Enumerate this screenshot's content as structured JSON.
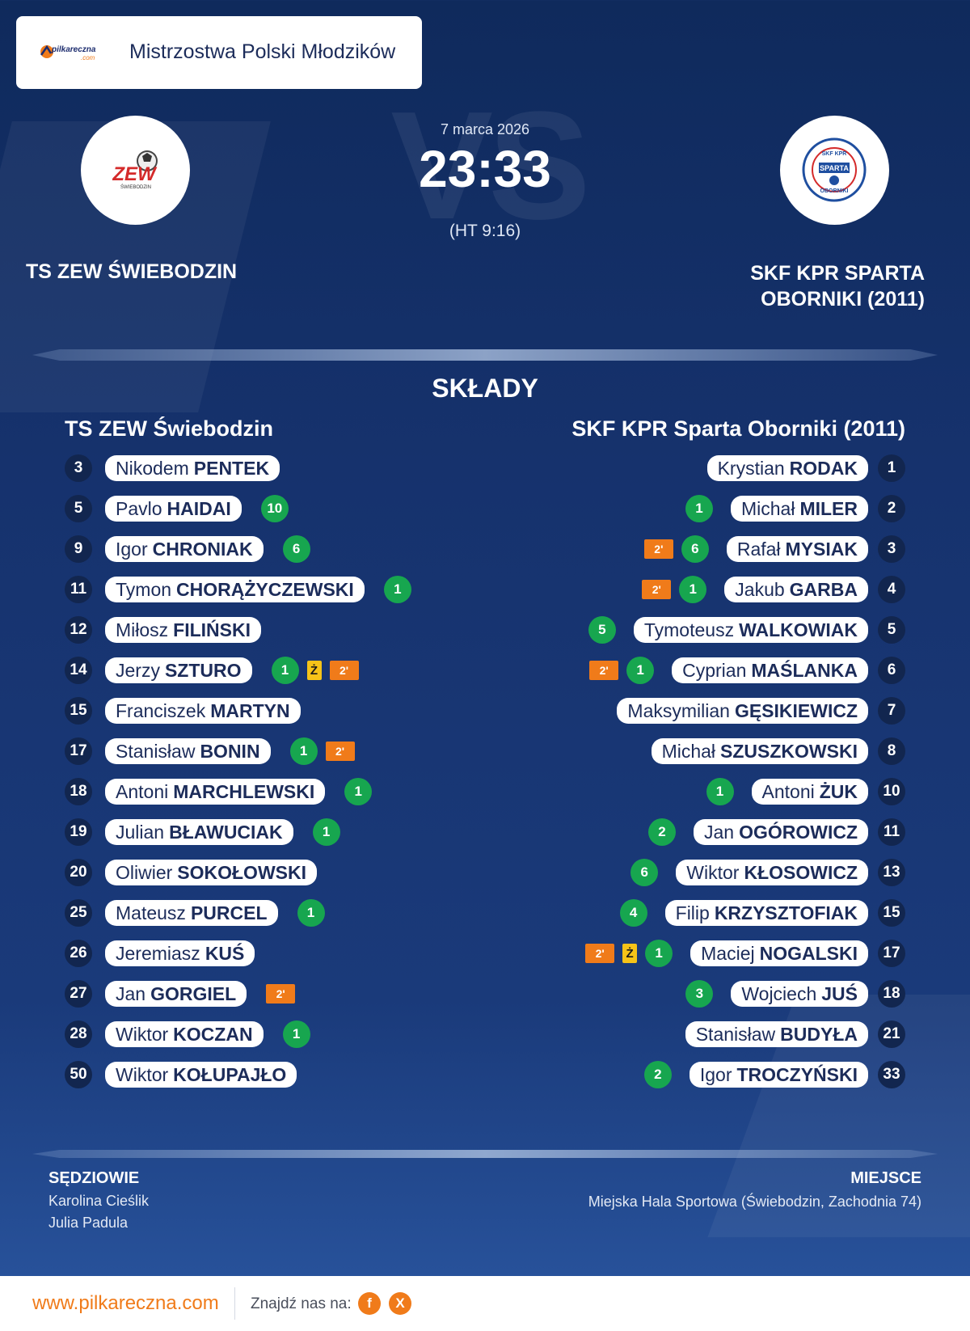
{
  "header": {
    "brand_name": "pilkareczna",
    "brand_tld": ".com",
    "competition": "Mistrzostwa Polski Młodzików"
  },
  "match": {
    "date": "7 marca 2026",
    "score": "23:33",
    "halftime": "(HT 9:16)",
    "vs_text": "VS"
  },
  "home": {
    "name": "TS ZEW ŚWIEBODZIN",
    "lineup_title": "TS ZEW Świebodzin",
    "logo_text": "ZEW",
    "logo_subtext": "ŚWIEBODZIN",
    "players": [
      {
        "number": "3",
        "first": "Nikodem",
        "last": "PENTEK",
        "stats": []
      },
      {
        "number": "5",
        "first": "Pavlo",
        "last": "HAIDAI",
        "stats": [
          {
            "type": "goals",
            "value": "10"
          }
        ]
      },
      {
        "number": "9",
        "first": "Igor",
        "last": "CHRONIAK",
        "stats": [
          {
            "type": "goals",
            "value": "6"
          }
        ]
      },
      {
        "number": "11",
        "first": "Tymon",
        "last": "CHORĄŻYCZEWSKI",
        "stats": [
          {
            "type": "goals",
            "value": "1"
          }
        ]
      },
      {
        "number": "12",
        "first": "Miłosz",
        "last": "FILIŃSKI",
        "stats": []
      },
      {
        "number": "14",
        "first": "Jerzy",
        "last": "SZTURO",
        "stats": [
          {
            "type": "goals",
            "value": "1"
          },
          {
            "type": "yellow",
            "value": "Ż"
          },
          {
            "type": "suspension",
            "value": "2'"
          }
        ]
      },
      {
        "number": "15",
        "first": "Franciszek",
        "last": "MARTYN",
        "stats": []
      },
      {
        "number": "17",
        "first": "Stanisław",
        "last": "BONIN",
        "stats": [
          {
            "type": "goals",
            "value": "1"
          },
          {
            "type": "suspension",
            "value": "2'"
          }
        ]
      },
      {
        "number": "18",
        "first": "Antoni",
        "last": "MARCHLEWSKI",
        "stats": [
          {
            "type": "goals",
            "value": "1"
          }
        ]
      },
      {
        "number": "19",
        "first": "Julian",
        "last": "BŁAWUCIAK",
        "stats": [
          {
            "type": "goals",
            "value": "1"
          }
        ]
      },
      {
        "number": "20",
        "first": "Oliwier",
        "last": "SOKOŁOWSKI",
        "stats": []
      },
      {
        "number": "25",
        "first": "Mateusz",
        "last": "PURCEL",
        "stats": [
          {
            "type": "goals",
            "value": "1"
          }
        ]
      },
      {
        "number": "26",
        "first": "Jeremiasz",
        "last": "KUŚ",
        "stats": []
      },
      {
        "number": "27",
        "first": "Jan",
        "last": "GORGIEL",
        "stats": [
          {
            "type": "suspension",
            "value": "2'"
          }
        ]
      },
      {
        "number": "28",
        "first": "Wiktor",
        "last": "KOCZAN",
        "stats": [
          {
            "type": "goals",
            "value": "1"
          }
        ]
      },
      {
        "number": "50",
        "first": "Wiktor",
        "last": "KOŁUPAJŁO",
        "stats": []
      }
    ]
  },
  "away": {
    "name_line1": "SKF KPR SPARTA",
    "name_line2": "OBORNIKI (2011)",
    "lineup_title": "SKF KPR Sparta Oborniki (2011)",
    "logo_text_top": "SKF KPR",
    "logo_text_mid": "SPARTA",
    "logo_text_bottom": "OBORNIKI",
    "players": [
      {
        "number": "1",
        "first": "Krystian",
        "last": "RODAK",
        "stats": []
      },
      {
        "number": "2",
        "first": "Michał",
        "last": "MILER",
        "stats": [
          {
            "type": "goals",
            "value": "1"
          }
        ]
      },
      {
        "number": "3",
        "first": "Rafał",
        "last": "MYSIAK",
        "stats": [
          {
            "type": "goals",
            "value": "6"
          },
          {
            "type": "suspension",
            "value": "2'"
          }
        ]
      },
      {
        "number": "4",
        "first": "Jakub",
        "last": "GARBA",
        "stats": [
          {
            "type": "goals",
            "value": "1"
          },
          {
            "type": "suspension",
            "value": "2'"
          }
        ]
      },
      {
        "number": "5",
        "first": "Tymoteusz",
        "last": "WALKOWIAK",
        "stats": [
          {
            "type": "goals",
            "value": "5"
          }
        ]
      },
      {
        "number": "6",
        "first": "Cyprian",
        "last": "MAŚLANKA",
        "stats": [
          {
            "type": "goals",
            "value": "1"
          },
          {
            "type": "suspension",
            "value": "2'"
          }
        ]
      },
      {
        "number": "7",
        "first": "Maksymilian",
        "last": "GĘSIKIEWICZ",
        "stats": []
      },
      {
        "number": "8",
        "first": "Michał",
        "last": "SZUSZKOWSKI",
        "stats": []
      },
      {
        "number": "10",
        "first": "Antoni",
        "last": "ŻUK",
        "stats": [
          {
            "type": "goals",
            "value": "1"
          }
        ]
      },
      {
        "number": "11",
        "first": "Jan",
        "last": "OGÓROWICZ",
        "stats": [
          {
            "type": "goals",
            "value": "2"
          }
        ]
      },
      {
        "number": "13",
        "first": "Wiktor",
        "last": "KŁOSOWICZ",
        "stats": [
          {
            "type": "goals",
            "value": "6"
          }
        ]
      },
      {
        "number": "15",
        "first": "Filip",
        "last": "KRZYSZTOFIAK",
        "stats": [
          {
            "type": "goals",
            "value": "4"
          }
        ]
      },
      {
        "number": "17",
        "first": "Maciej",
        "last": "NOGALSKI",
        "stats": [
          {
            "type": "goals",
            "value": "1"
          },
          {
            "type": "yellow",
            "value": "Ż"
          },
          {
            "type": "suspension",
            "value": "2'"
          }
        ]
      },
      {
        "number": "18",
        "first": "Wojciech",
        "last": "JUŚ",
        "stats": [
          {
            "type": "goals",
            "value": "3"
          }
        ]
      },
      {
        "number": "21",
        "first": "Stanisław",
        "last": "BUDYŁA",
        "stats": []
      },
      {
        "number": "33",
        "first": "Igor",
        "last": "TROCZYŃSKI",
        "stats": [
          {
            "type": "goals",
            "value": "2"
          }
        ]
      }
    ]
  },
  "section_title": "SKŁADY",
  "officials": {
    "label": "SĘDZIOWIE",
    "names": [
      "Karolina Cieślik",
      "Julia Padula"
    ]
  },
  "venue": {
    "label": "MIEJSCE",
    "name": "Miejska Hala Sportowa (Świebodzin, Zachodnia 74)"
  },
  "footer": {
    "site": "www.pilkareczna.com",
    "find_us": "Znajdź nas na:",
    "social": [
      {
        "icon": "facebook-icon",
        "glyph": "f"
      },
      {
        "icon": "x-icon",
        "glyph": "X"
      }
    ]
  },
  "colors": {
    "accent": "#f07b1a",
    "goal": "#17a64f",
    "yellow_card": "#f6c318",
    "suspension": "#f07b1a",
    "navy": "#16326d"
  }
}
